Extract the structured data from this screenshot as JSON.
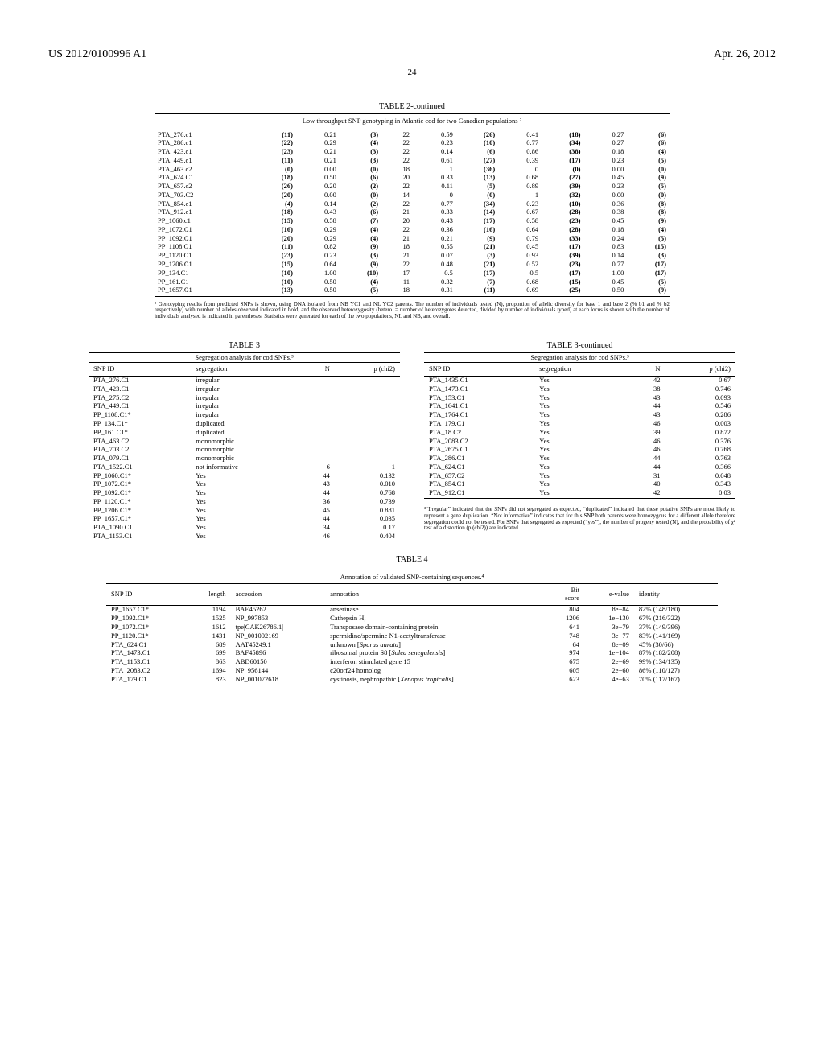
{
  "header": {
    "doc_id": "US 2012/0100996 A1",
    "date": "Apr. 26, 2012",
    "page": "24"
  },
  "table2": {
    "title": "TABLE 2-continued",
    "subtitle": "Low throughput SNP genotyping in Atlantic cod for two Canadian populations ²",
    "rows": [
      [
        "PTA_276.c1",
        "(11)",
        "0.21",
        "(3)",
        "22",
        "0.59",
        "(26)",
        "0.41",
        "(18)",
        "0.27",
        "(6)"
      ],
      [
        "PTA_286.c1",
        "(22)",
        "0.29",
        "(4)",
        "22",
        "0.23",
        "(10)",
        "0.77",
        "(34)",
        "0.27",
        "(6)"
      ],
      [
        "PTA_423.c1",
        "(23)",
        "0.21",
        "(3)",
        "22",
        "0.14",
        "(6)",
        "0.86",
        "(38)",
        "0.18",
        "(4)"
      ],
      [
        "PTA_449.c1",
        "(11)",
        "0.21",
        "(3)",
        "22",
        "0.61",
        "(27)",
        "0.39",
        "(17)",
        "0.23",
        "(5)"
      ],
      [
        "PTA_463.c2",
        "(0)",
        "0.00",
        "(0)",
        "18",
        "1",
        "(36)",
        "0",
        "(0)",
        "0.00",
        "(0)"
      ],
      [
        "PTA_624.C1",
        "(18)",
        "0.50",
        "(6)",
        "20",
        "0.33",
        "(13)",
        "0.68",
        "(27)",
        "0.45",
        "(9)"
      ],
      [
        "PTA_657.c2",
        "(26)",
        "0.20",
        "(2)",
        "22",
        "0.11",
        "(5)",
        "0.89",
        "(39)",
        "0.23",
        "(5)"
      ],
      [
        "PTA_703.C2",
        "(20)",
        "0.00",
        "(0)",
        "14",
        "0",
        "(0)",
        "1",
        "(32)",
        "0.00",
        "(0)"
      ],
      [
        "PTA_854.c1",
        "(4)",
        "0.14",
        "(2)",
        "22",
        "0.77",
        "(34)",
        "0.23",
        "(10)",
        "0.36",
        "(8)"
      ],
      [
        "PTA_912.c1",
        "(18)",
        "0.43",
        "(6)",
        "21",
        "0.33",
        "(14)",
        "0.67",
        "(28)",
        "0.38",
        "(8)"
      ],
      [
        "PP_1060.c1",
        "(15)",
        "0.58",
        "(7)",
        "20",
        "0.43",
        "(17)",
        "0.58",
        "(23)",
        "0.45",
        "(9)"
      ],
      [
        "PP_1072.C1",
        "(16)",
        "0.29",
        "(4)",
        "22",
        "0.36",
        "(16)",
        "0.64",
        "(28)",
        "0.18",
        "(4)"
      ],
      [
        "PP_1092.C1",
        "(20)",
        "0.29",
        "(4)",
        "21",
        "0.21",
        "(9)",
        "0.79",
        "(33)",
        "0.24",
        "(5)"
      ],
      [
        "PP_1108.C1",
        "(11)",
        "0.82",
        "(9)",
        "18",
        "0.55",
        "(21)",
        "0.45",
        "(17)",
        "0.83",
        "(15)"
      ],
      [
        "PP_1120.C1",
        "(23)",
        "0.23",
        "(3)",
        "21",
        "0.07",
        "(3)",
        "0.93",
        "(39)",
        "0.14",
        "(3)"
      ],
      [
        "PP_1206.C1",
        "(15)",
        "0.64",
        "(9)",
        "22",
        "0.48",
        "(21)",
        "0.52",
        "(23)",
        "0.77",
        "(17)"
      ],
      [
        "PP_134.C1",
        "(10)",
        "1.00",
        "(10)",
        "17",
        "0.5",
        "(17)",
        "0.5",
        "(17)",
        "1.00",
        "(17)"
      ],
      [
        "PP_161.C1",
        "(10)",
        "0.50",
        "(4)",
        "11",
        "0.32",
        "(7)",
        "0.68",
        "(15)",
        "0.45",
        "(5)"
      ],
      [
        "PP_1657.C1",
        "(13)",
        "0.50",
        "(5)",
        "18",
        "0.31",
        "(11)",
        "0.69",
        "(25)",
        "0.50",
        "(9)"
      ]
    ],
    "footnote": "² Genotyping results from predicted SNPs is shown, using DNA isolated from NB YC1 and NL YC2 parents. The number of individuals tested (N), proportion of allelic diversity for base 1 and base 2 (% b1 and % b2 respectively) with number of alleles observed indicated in bold, and the observed heterozygosity (hetero. = number of heterozygotes detected, divided by number of individuals typed) at each locus is shown with the number of individuals analysed is indicated in parentheses. Statistics were generated for each of the two populations, NL and NB, and overall."
  },
  "table3": {
    "title_left": "TABLE 3",
    "title_right": "TABLE 3-continued",
    "subtitle": "Segregation analysis for cod SNPs.³",
    "headers": [
      "SNP ID",
      "segregation",
      "N",
      "p (chi2)"
    ],
    "rows_left": [
      [
        "PTA_276.C1",
        "irregular",
        "",
        ""
      ],
      [
        "PTA_423.C1",
        "irregular",
        "",
        ""
      ],
      [
        "PTA_275.C2",
        "irregular",
        "",
        ""
      ],
      [
        "PTA_449.C1",
        "irregular",
        "",
        ""
      ],
      [
        "PP_1108.C1*",
        "irregular",
        "",
        ""
      ],
      [
        "PP_134.C1*",
        "duplicated",
        "",
        ""
      ],
      [
        "PP_161.C1*",
        "duplicated",
        "",
        ""
      ],
      [
        "PTA_463.C2",
        "monomorphic",
        "",
        ""
      ],
      [
        "PTA_703.C2",
        "monomorphic",
        "",
        ""
      ],
      [
        "PTA_079.C1",
        "monomorphic",
        "",
        ""
      ],
      [
        "PTA_1522.C1",
        "not informative",
        "6",
        "1"
      ],
      [
        "PP_1060.C1*",
        "Yes",
        "44",
        "0.132"
      ],
      [
        "PP_1072.C1*",
        "Yes",
        "43",
        "0.010"
      ],
      [
        "PP_1092.C1*",
        "Yes",
        "44",
        "0.768"
      ],
      [
        "PP_1120.C1*",
        "Yes",
        "36",
        "0.739"
      ],
      [
        "PP_1206.C1*",
        "Yes",
        "45",
        "0.881"
      ],
      [
        "PP_1657.C1*",
        "Yes",
        "44",
        "0.035"
      ],
      [
        "PTA_1090.C1",
        "Yes",
        "34",
        "0.17"
      ],
      [
        "PTA_1153.C1",
        "Yes",
        "46",
        "0.404"
      ]
    ],
    "rows_right": [
      [
        "PTA_1435.C1",
        "Yes",
        "42",
        "0.67"
      ],
      [
        "PTA_1473.C1",
        "Yes",
        "38",
        "0.746"
      ],
      [
        "PTA_153.C1",
        "Yes",
        "43",
        "0.093"
      ],
      [
        "PTA_1641.C1",
        "Yes",
        "44",
        "0.546"
      ],
      [
        "PTA_1764.C1",
        "Yes",
        "43",
        "0.286"
      ],
      [
        "PTA_179.C1",
        "Yes",
        "46",
        "0.003"
      ],
      [
        "PTA_18.C2",
        "Yes",
        "39",
        "0.872"
      ],
      [
        "PTA_2083.C2",
        "Yes",
        "46",
        "0.376"
      ],
      [
        "PTA_2675.C1",
        "Yes",
        "46",
        "0.768"
      ],
      [
        "PTA_286.C1",
        "Yes",
        "44",
        "0.763"
      ],
      [
        "PTA_624.C1",
        "Yes",
        "44",
        "0.366"
      ],
      [
        "PTA_657.C2",
        "Yes",
        "31",
        "0.048"
      ],
      [
        "PTA_854.C1",
        "Yes",
        "40",
        "0.343"
      ],
      [
        "PTA_912.C1",
        "Yes",
        "42",
        "0.03"
      ]
    ],
    "footnote": "³“Irregular” indicated that the SNPs did not segregated as expected, “duplicated” indicated that these putative SNPs are most likely to represent a gene duplication. “Not informative” indicates that for this SNP both parents were homozygous for a different allele therefore segregation could not be tested. For SNPs that segregated as expected (“yes”), the number of progeny tested (N), and the probability of χ² test of a distortion (p (chi2)) are indicated."
  },
  "table4": {
    "title": "TABLE 4",
    "subtitle": "Annotation of validated SNP-containing sequences.⁴",
    "headers": [
      "SNP ID",
      "length",
      "accession",
      "annotation",
      "Bit score",
      "e-value",
      "identity"
    ],
    "rows": [
      [
        "PP_1657.C1*",
        "1194",
        "BAE45262",
        "anserinase",
        "804",
        "8e−84",
        "82% (148/180)"
      ],
      [
        "PP_1092.C1*",
        "1525",
        "NP_997853",
        "Cathepsin H;",
        "1206",
        "1e−130",
        "67% (216/322)"
      ],
      [
        "PP_1072.C1*",
        "1612",
        "tpe|CAK26786.1|",
        "Transposase domain-containing protein",
        "641",
        "3e−79",
        "37% (149/396)"
      ],
      [
        "PP_1120.C1*",
        "1431",
        "NP_001002169",
        "spermidine/spermine N1-acetyltransferase",
        "748",
        "3e−77",
        "83% (141/169)"
      ],
      [
        "PTA_624.C1",
        "689",
        "AAT45249.1",
        "unknown [Sparus aurata]",
        "64",
        "8e−09",
        "45% (30/66)"
      ],
      [
        "PTA_1473.C1",
        "699",
        "BAF45896",
        "ribosomal protein S8 [Solea senegalensis]",
        "974",
        "1e−104",
        "87% (182/208)"
      ],
      [
        "PTA_1153.C1",
        "863",
        "ABD60150",
        "interferon stimulated gene 15",
        "675",
        "2e−69",
        "99% (134/135)"
      ],
      [
        "PTA_2083.C2",
        "1694",
        "NP_956144",
        "c20orf24 homolog",
        "605",
        "2e−60",
        "86% (110/127)"
      ],
      [
        "PTA_179.C1",
        "823",
        "NP_001072618",
        "cystinosis, nephropathic [Xenopus tropicalis]",
        "623",
        "4e−63",
        "70% (117/167)"
      ]
    ]
  }
}
